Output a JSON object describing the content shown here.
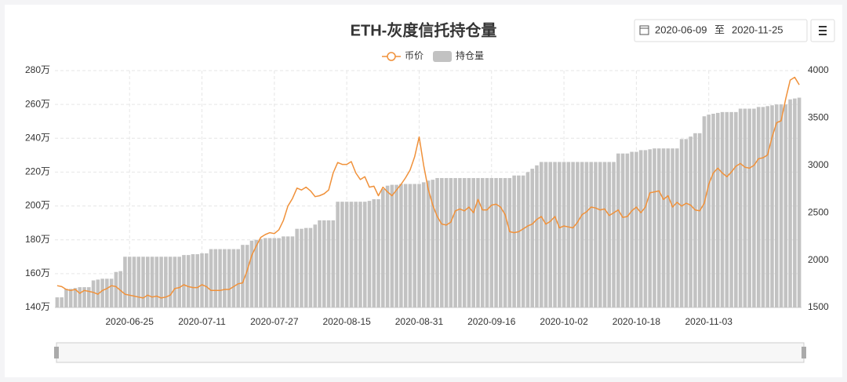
{
  "chart_data": {
    "type": "bar_line",
    "title": "ETH-灰度信托持仓量",
    "date_range": {
      "start": "2020-06-09",
      "separator": "至",
      "end": "2020-11-25"
    },
    "categories": [
      null,
      null,
      null,
      null,
      null,
      null,
      null,
      null,
      null,
      null,
      null,
      null,
      null,
      null,
      null,
      null,
      "2020-06-25",
      null,
      null,
      null,
      null,
      null,
      null,
      null,
      null,
      null,
      null,
      null,
      null,
      null,
      null,
      null,
      "2020-07-11",
      null,
      null,
      null,
      null,
      null,
      null,
      null,
      null,
      null,
      null,
      null,
      null,
      null,
      null,
      null,
      "2020-07-27",
      null,
      null,
      null,
      null,
      null,
      null,
      null,
      null,
      null,
      null,
      null,
      null,
      null,
      null,
      null,
      "2020-08-15",
      null,
      null,
      null,
      null,
      null,
      null,
      null,
      null,
      null,
      null,
      null,
      null,
      null,
      null,
      null,
      "2020-08-31",
      null,
      null,
      null,
      null,
      null,
      null,
      null,
      null,
      null,
      null,
      null,
      null,
      null,
      null,
      null,
      "2020-09-16",
      null,
      null,
      null,
      null,
      null,
      null,
      null,
      null,
      null,
      null,
      null,
      null,
      null,
      null,
      null,
      "2020-10-02",
      null,
      null,
      null,
      null,
      null,
      null,
      null,
      null,
      null,
      null,
      null,
      null,
      null,
      null,
      null,
      "2020-10-18",
      null,
      null,
      null,
      null,
      null,
      null,
      null,
      null,
      null,
      null,
      null,
      null,
      null,
      null,
      null,
      "2020-11-03",
      null,
      null,
      null,
      null,
      null,
      null,
      null,
      null,
      null,
      null,
      null,
      null,
      null,
      null,
      null,
      null,
      null,
      null,
      null,
      null
    ],
    "series": [
      {
        "name": "币价",
        "type": "line",
        "axis": "y2",
        "color": "#f0913a",
        "values": [
          1730,
          1720,
          1690,
          1680,
          1690,
          1650,
          1680,
          1670,
          1660,
          1640,
          1680,
          1700,
          1730,
          1720,
          1680,
          1640,
          1630,
          1620,
          1610,
          1600,
          1630,
          1610,
          1620,
          1600,
          1610,
          1630,
          1700,
          1710,
          1740,
          1720,
          1710,
          1710,
          1740,
          1720,
          1680,
          1680,
          1680,
          1690,
          1690,
          1720,
          1750,
          1760,
          1890,
          2050,
          2150,
          2240,
          2270,
          2290,
          2280,
          2320,
          2420,
          2570,
          2650,
          2760,
          2740,
          2770,
          2730,
          2670,
          2680,
          2700,
          2740,
          2920,
          3030,
          3010,
          3010,
          3040,
          2920,
          2850,
          2880,
          2770,
          2780,
          2680,
          2770,
          2720,
          2680,
          2740,
          2800,
          2870,
          2950,
          3090,
          3300,
          3000,
          2750,
          2580,
          2460,
          2380,
          2370,
          2400,
          2520,
          2540,
          2520,
          2560,
          2500,
          2640,
          2530,
          2530,
          2580,
          2590,
          2560,
          2480,
          2300,
          2290,
          2300,
          2330,
          2360,
          2380,
          2430,
          2460,
          2380,
          2410,
          2460,
          2340,
          2360,
          2350,
          2340,
          2400,
          2480,
          2510,
          2560,
          2550,
          2530,
          2540,
          2470,
          2500,
          2530,
          2450,
          2460,
          2520,
          2560,
          2500,
          2560,
          2710,
          2720,
          2730,
          2640,
          2680,
          2560,
          2610,
          2570,
          2600,
          2580,
          2530,
          2520,
          2600,
          2800,
          2920,
          2970,
          2920,
          2880,
          2930,
          2990,
          3020,
          2980,
          2970,
          3000,
          3070,
          3080,
          3110,
          3300,
          3450,
          3470,
          3700,
          3900,
          3930,
          3850
        ]
      },
      {
        "name": "持仓量",
        "type": "bar",
        "color": "#c2c2c2",
        "values": [
          146,
          146,
          151,
          151,
          151.5,
          152,
          152,
          152,
          156,
          156.5,
          157,
          157,
          157,
          161,
          161.5,
          170,
          170,
          170,
          170,
          170,
          170,
          170,
          170,
          170,
          170,
          170,
          170,
          170,
          171,
          171,
          171.5,
          171.5,
          172,
          172,
          174.5,
          174.5,
          174.5,
          174.5,
          174.5,
          174.5,
          174.5,
          177,
          177,
          179.5,
          180,
          180.5,
          181,
          181,
          181,
          181,
          182,
          182,
          182,
          186.5,
          186.5,
          187,
          187,
          189,
          191.5,
          191.5,
          191.5,
          191.5,
          202.5,
          202.5,
          202.5,
          202.5,
          202.5,
          202.5,
          202.5,
          203,
          204,
          204,
          210,
          212,
          212.5,
          212.5,
          213,
          213,
          213,
          213,
          213,
          214,
          215,
          215.5,
          216.5,
          216.5,
          216.5,
          216.5,
          216.5,
          216.5,
          216.5,
          216.5,
          216.5,
          216.5,
          216.5,
          216.5,
          216.5,
          216.5,
          216.5,
          216.5,
          216.5,
          218,
          218,
          218,
          220,
          222,
          224,
          226,
          226,
          226,
          226,
          226,
          226,
          226,
          226,
          226,
          226,
          226,
          226,
          226,
          226,
          226,
          226,
          226,
          231,
          231,
          231,
          232,
          232,
          233,
          233,
          233.5,
          234,
          234,
          234,
          234,
          234,
          234,
          239.5,
          239.5,
          241,
          243,
          243,
          253,
          254,
          254.5,
          255,
          255.5,
          255.5,
          255.5,
          255.5,
          257.5,
          257.5,
          257.5,
          257.5,
          258.5,
          258.5,
          259,
          259.5,
          260,
          260,
          260,
          263,
          263.5,
          264
        ]
      }
    ],
    "ylim": [
      140,
      280
    ],
    "yticks": [
      {
        "value": 140,
        "label": "140万"
      },
      {
        "value": 160,
        "label": "160万"
      },
      {
        "value": 180,
        "label": "180万"
      },
      {
        "value": 200,
        "label": "200万"
      },
      {
        "value": 220,
        "label": "220万"
      },
      {
        "value": 240,
        "label": "240万"
      },
      {
        "value": 260,
        "label": "260万"
      },
      {
        "value": 280,
        "label": "280万"
      }
    ],
    "y2lim": [
      1500,
      4000
    ],
    "y2ticks": [
      1500,
      2000,
      2500,
      3000,
      3500,
      4000
    ],
    "grid": true,
    "legend": "top"
  }
}
